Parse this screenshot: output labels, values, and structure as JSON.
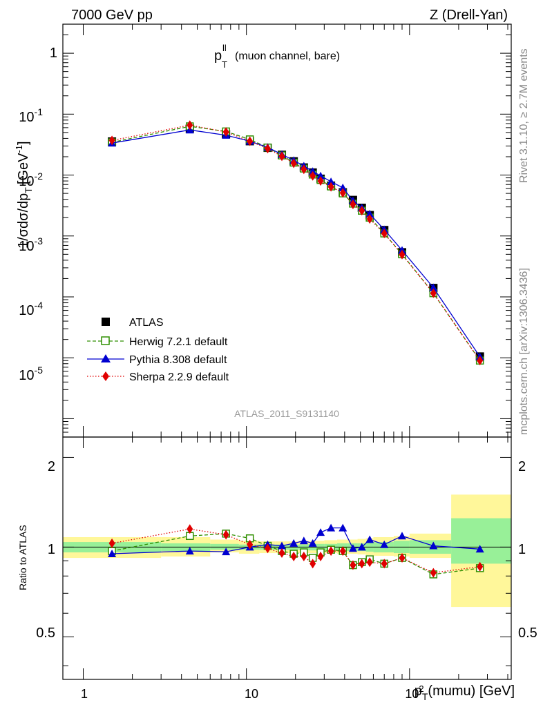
{
  "header": {
    "energy": "7000 GeV pp",
    "process": "Z (Drell-Yan)"
  },
  "side_labels": {
    "rivet": "Rivet 3.1.10, ≥ 2.7M events",
    "mcplots": "mcplots.cern.ch [arXiv:1306.3436]"
  },
  "analysis_id": "ATLAS_2011_S9131140",
  "plot_title": {
    "main": "p",
    "sup": "ll",
    "sub": "T",
    "rest": "(muon channel, bare)"
  },
  "axes": {
    "x_label_main": "p",
    "x_label_sub": "T",
    "x_label_rest": "(mumu) [GeV]",
    "y_label": "1/σdσ/dp",
    "y_label_sub": "T",
    "y_label_unit": "[GeV",
    "y_label_unit_sup": "-1",
    "y_label_close": "]",
    "ratio_label": "Ratio to ATLAS",
    "x_tick_labels": [
      "1",
      "10",
      "10",
      "2"
    ],
    "y_tick_labels": [
      {
        "base": "1",
        "exp": ""
      },
      {
        "base": "10",
        "exp": "-1"
      },
      {
        "base": "10",
        "exp": "-2"
      },
      {
        "base": "10",
        "exp": "-3"
      },
      {
        "base": "10",
        "exp": "-4"
      },
      {
        "base": "10",
        "exp": "-5"
      }
    ],
    "ratio_tick_labels": [
      "2",
      "1",
      "0.5"
    ]
  },
  "legend": [
    {
      "label": "ATLAS",
      "color": "#000000",
      "marker": "filled-square"
    },
    {
      "label": "Herwig 7.2.1 default",
      "color": "#2f8f00",
      "marker": "open-square",
      "line": "dashed"
    },
    {
      "label": "Pythia 8.308 default",
      "color": "#0000d0",
      "marker": "filled-triangle",
      "line": "solid"
    },
    {
      "label": "Sherpa 2.2.9 default",
      "color": "#e00000",
      "marker": "filled-diamond",
      "line": "dotted"
    }
  ],
  "chart_data": {
    "type": "scatter",
    "x_scale": "log",
    "y_scale": "log",
    "xlim": [
      0.75,
      420
    ],
    "ylim": [
      5e-07,
      3
    ],
    "ratio_ylim": [
      0.36,
      2.34
    ],
    "ratio_y_scale": "log",
    "x": [
      1.5,
      4.5,
      7.5,
      10.5,
      13.5,
      16.5,
      19.5,
      22.5,
      25.5,
      28.5,
      33,
      39,
      45,
      51,
      57,
      70,
      90,
      140,
      270
    ],
    "series": [
      {
        "name": "ATLAS",
        "values": [
          0.0355,
          0.058,
          0.047,
          0.036,
          0.028,
          0.0215,
          0.0168,
          0.0133,
          0.011,
          0.0087,
          0.0067,
          0.0052,
          0.0039,
          0.0029,
          0.0022,
          0.00125,
          0.00054,
          0.00014,
          1.05e-05
        ]
      },
      {
        "name": "Herwig 7.2.1 default",
        "values": [
          0.0345,
          0.063,
          0.052,
          0.0385,
          0.0283,
          0.021,
          0.016,
          0.0128,
          0.0102,
          0.0083,
          0.0065,
          0.005,
          0.0034,
          0.0026,
          0.002,
          0.0011,
          0.0005,
          0.000115,
          9e-06
        ]
      },
      {
        "name": "Pythia 8.308 default",
        "values": [
          0.0335,
          0.055,
          0.045,
          0.036,
          0.0285,
          0.0218,
          0.0174,
          0.0141,
          0.0115,
          0.0097,
          0.0078,
          0.0062,
          0.0038,
          0.0029,
          0.0023,
          0.00127,
          0.000582,
          0.000142,
          1.04e-05
        ]
      },
      {
        "name": "Sherpa 2.2.9 default",
        "values": [
          0.037,
          0.066,
          0.051,
          0.036,
          0.0272,
          0.0203,
          0.0156,
          0.0124,
          0.0097,
          0.008,
          0.0064,
          0.0051,
          0.0033,
          0.0026,
          0.0019,
          0.0011,
          0.000495,
          0.000115,
          9e-06
        ]
      }
    ],
    "ratios": [
      {
        "name": "Herwig 7.2.1 default",
        "values": [
          0.97,
          1.09,
          1.11,
          1.07,
          1.01,
          0.97,
          0.95,
          0.96,
          0.92,
          0.96,
          0.98,
          0.97,
          0.87,
          0.89,
          0.91,
          0.88,
          0.92,
          0.81,
          0.85
        ]
      },
      {
        "name": "Pythia 8.308 default",
        "values": [
          0.95,
          0.97,
          0.965,
          1.0,
          1.02,
          1.01,
          1.03,
          1.05,
          1.03,
          1.12,
          1.16,
          1.16,
          0.99,
          1.0,
          1.06,
          1.02,
          1.09,
          1.01,
          0.985
        ]
      },
      {
        "name": "Sherpa 2.2.9 default",
        "values": [
          1.03,
          1.15,
          1.1,
          1.02,
          0.99,
          0.955,
          0.93,
          0.93,
          0.88,
          0.93,
          0.97,
          0.97,
          0.87,
          0.88,
          0.89,
          0.88,
          0.92,
          0.82,
          0.86
        ]
      }
    ],
    "uncertainty_bands": {
      "stat_color": "#98f098",
      "total_color": "#fff79a",
      "bins": [
        {
          "xlo": 0.75,
          "xhi": 3,
          "stat": [
            0.96,
            1.04
          ],
          "total": [
            0.92,
            1.08
          ]
        },
        {
          "xlo": 3,
          "xhi": 6,
          "stat": [
            0.97,
            1.03
          ],
          "total": [
            0.93,
            1.08
          ]
        },
        {
          "xlo": 6,
          "xhi": 9,
          "stat": [
            0.98,
            1.025
          ],
          "total": [
            0.96,
            1.06
          ]
        },
        {
          "xlo": 9,
          "xhi": 12,
          "stat": [
            0.98,
            1.02
          ],
          "total": [
            0.95,
            1.05
          ]
        },
        {
          "xlo": 12,
          "xhi": 15,
          "stat": [
            0.98,
            1.02
          ],
          "total": [
            0.955,
            1.045
          ]
        },
        {
          "xlo": 15,
          "xhi": 18,
          "stat": [
            0.98,
            1.02
          ],
          "total": [
            0.955,
            1.045
          ]
        },
        {
          "xlo": 18,
          "xhi": 21,
          "stat": [
            0.98,
            1.02
          ],
          "total": [
            0.955,
            1.045
          ]
        },
        {
          "xlo": 21,
          "xhi": 24,
          "stat": [
            0.98,
            1.02
          ],
          "total": [
            0.955,
            1.05
          ]
        },
        {
          "xlo": 24,
          "xhi": 27,
          "stat": [
            0.975,
            1.025
          ],
          "total": [
            0.955,
            1.05
          ]
        },
        {
          "xlo": 27,
          "xhi": 30,
          "stat": [
            0.975,
            1.025
          ],
          "total": [
            0.955,
            1.05
          ]
        },
        {
          "xlo": 30,
          "xhi": 36,
          "stat": [
            0.975,
            1.025
          ],
          "total": [
            0.955,
            1.055
          ]
        },
        {
          "xlo": 36,
          "xhi": 42,
          "stat": [
            0.97,
            1.03
          ],
          "total": [
            0.95,
            1.06
          ]
        },
        {
          "xlo": 42,
          "xhi": 48,
          "stat": [
            0.97,
            1.03
          ],
          "total": [
            0.95,
            1.06
          ]
        },
        {
          "xlo": 48,
          "xhi": 54,
          "stat": [
            0.97,
            1.03
          ],
          "total": [
            0.945,
            1.065
          ]
        },
        {
          "xlo": 54,
          "xhi": 60,
          "stat": [
            0.965,
            1.035
          ],
          "total": [
            0.94,
            1.07
          ]
        },
        {
          "xlo": 60,
          "xhi": 80,
          "stat": [
            0.96,
            1.04
          ],
          "total": [
            0.935,
            1.08
          ]
        },
        {
          "xlo": 80,
          "xhi": 100,
          "stat": [
            0.955,
            1.05
          ],
          "total": [
            0.93,
            1.09
          ]
        },
        {
          "xlo": 100,
          "xhi": 180,
          "stat": [
            0.95,
            1.055
          ],
          "total": [
            0.92,
            1.11
          ]
        },
        {
          "xlo": 180,
          "xhi": 420,
          "stat": [
            0.88,
            1.25
          ],
          "total": [
            0.63,
            1.5
          ]
        }
      ]
    }
  }
}
